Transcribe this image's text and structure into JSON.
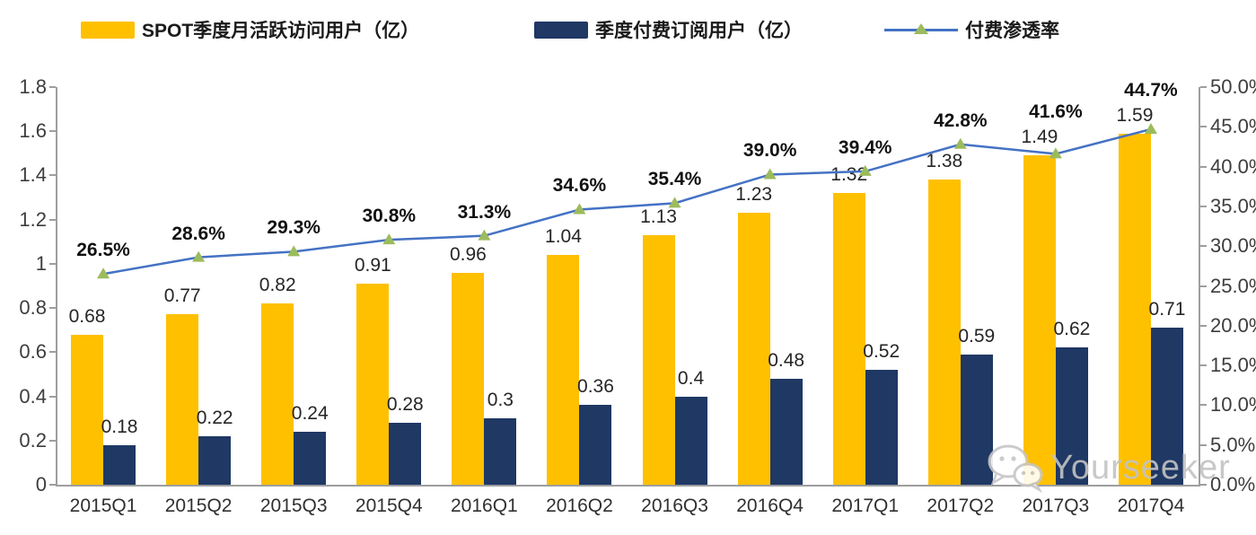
{
  "legend": {
    "items": [
      {
        "label": "SPOT季度月活跃访问用户（亿）"
      },
      {
        "label": "季度付费订阅用户（亿）"
      },
      {
        "label": "付费渗透率"
      }
    ]
  },
  "chart_data": {
    "type": "bar",
    "subtype": "clustered-bars-with-line",
    "title": "",
    "categories": [
      "2015Q1",
      "2015Q2",
      "2015Q3",
      "2015Q4",
      "2016Q1",
      "2016Q2",
      "2016Q3",
      "2016Q4",
      "2017Q1",
      "2017Q2",
      "2017Q3",
      "2017Q4"
    ],
    "series": [
      {
        "name": "SPOT季度月活跃访问用户（亿）",
        "type": "bar",
        "axis": "left",
        "color": "#FFC000",
        "values": [
          0.68,
          0.77,
          0.82,
          0.91,
          0.96,
          1.04,
          1.13,
          1.23,
          1.32,
          1.38,
          1.49,
          1.59
        ],
        "labels": [
          "0.68",
          "0.77",
          "0.82",
          "0.91",
          "0.96",
          "1.04",
          "1.13",
          "1.23",
          "1.32",
          "1.38",
          "1.49",
          "1.59"
        ]
      },
      {
        "name": "季度付费订阅用户（亿）",
        "type": "bar",
        "axis": "left",
        "color": "#1F3864",
        "values": [
          0.18,
          0.22,
          0.24,
          0.28,
          0.3,
          0.36,
          0.4,
          0.48,
          0.52,
          0.59,
          0.62,
          0.71
        ],
        "labels": [
          "0.18",
          "0.22",
          "0.24",
          "0.28",
          "0.3",
          "0.36",
          "0.4",
          "0.48",
          "0.52",
          "0.59",
          "0.62",
          "0.71"
        ]
      },
      {
        "name": "付费渗透率",
        "type": "line",
        "axis": "right",
        "color": "#4472C4",
        "marker": "triangle",
        "marker_color": "#9CBB5C",
        "values": [
          26.5,
          28.6,
          29.3,
          30.8,
          31.3,
          34.6,
          35.4,
          39.0,
          39.4,
          42.8,
          41.6,
          44.7
        ],
        "labels": [
          "26.5%",
          "28.6%",
          "29.3%",
          "30.8%",
          "31.3%",
          "34.6%",
          "35.4%",
          "39.0%",
          "39.4%",
          "42.8%",
          "41.6%",
          "44.7%"
        ]
      }
    ],
    "left_axis": {
      "min": 0,
      "max": 1.8,
      "tick_labels": [
        "1.8",
        "1.6",
        "1.4",
        "1.2",
        "1",
        "0.8",
        "0.6",
        "0.4",
        "0.2",
        "0"
      ]
    },
    "right_axis": {
      "min": 0,
      "max": 50,
      "tick_labels": [
        "50.0%",
        "45.0%",
        "40.0%",
        "35.0%",
        "30.0%",
        "25.0%",
        "20.0%",
        "15.0%",
        "10.0%",
        "5.0%",
        "0.0%"
      ]
    },
    "grid": false,
    "legend_position": "top"
  },
  "watermark": {
    "text": "Yourseeker"
  }
}
